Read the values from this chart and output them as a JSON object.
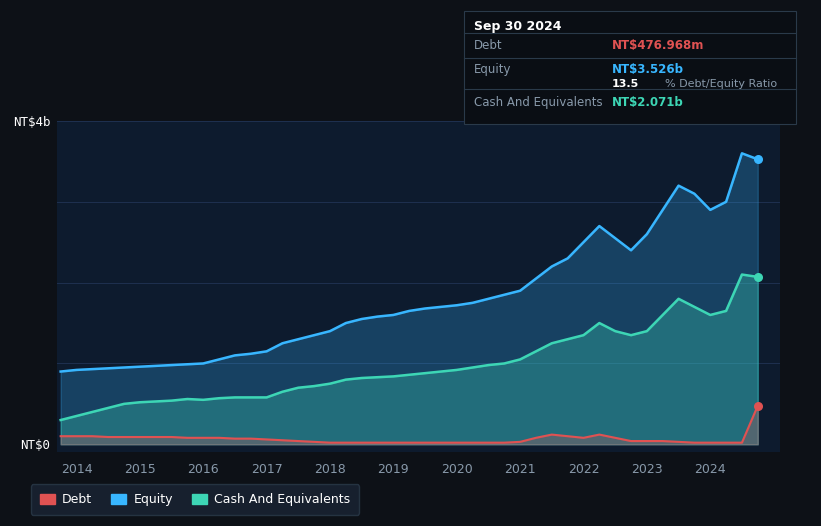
{
  "bg_color": "#0d1117",
  "plot_bg_color": "#0d1b2e",
  "grid_color": "#1e3050",
  "title_date": "Sep 30 2024",
  "debt_label": "Debt",
  "equity_label": "Equity",
  "cash_label": "Cash And Equivalents",
  "debt_value": "NT$476.968m",
  "equity_value": "NT$3.526b",
  "ratio_value": "13.5% Debt/Equity Ratio",
  "cash_value": "NT$2.071b",
  "debt_color": "#e05252",
  "equity_color": "#38b6ff",
  "cash_color": "#3dd6b5",
  "ylabel_top": "NT$4b",
  "ylabel_bottom": "NT$0",
  "y_max": 4.0,
  "y_min": -0.1,
  "equity_data": {
    "x": [
      2013.75,
      2014.0,
      2014.25,
      2014.5,
      2014.75,
      2015.0,
      2015.25,
      2015.5,
      2015.75,
      2016.0,
      2016.25,
      2016.5,
      2016.75,
      2017.0,
      2017.25,
      2017.5,
      2017.75,
      2018.0,
      2018.25,
      2018.5,
      2018.75,
      2019.0,
      2019.25,
      2019.5,
      2019.75,
      2020.0,
      2020.25,
      2020.5,
      2020.75,
      2021.0,
      2021.25,
      2021.5,
      2021.75,
      2022.0,
      2022.25,
      2022.5,
      2022.75,
      2023.0,
      2023.25,
      2023.5,
      2023.75,
      2024.0,
      2024.25,
      2024.5,
      2024.75
    ],
    "y": [
      0.9,
      0.92,
      0.93,
      0.94,
      0.95,
      0.96,
      0.97,
      0.98,
      0.99,
      1.0,
      1.05,
      1.1,
      1.12,
      1.15,
      1.25,
      1.3,
      1.35,
      1.4,
      1.5,
      1.55,
      1.58,
      1.6,
      1.65,
      1.68,
      1.7,
      1.72,
      1.75,
      1.8,
      1.85,
      1.9,
      2.05,
      2.2,
      2.3,
      2.5,
      2.7,
      2.55,
      2.4,
      2.6,
      2.9,
      3.2,
      3.1,
      2.9,
      3.0,
      3.6,
      3.526
    ]
  },
  "cash_data": {
    "x": [
      2013.75,
      2014.0,
      2014.25,
      2014.5,
      2014.75,
      2015.0,
      2015.25,
      2015.5,
      2015.75,
      2016.0,
      2016.25,
      2016.5,
      2016.75,
      2017.0,
      2017.25,
      2017.5,
      2017.75,
      2018.0,
      2018.25,
      2018.5,
      2018.75,
      2019.0,
      2019.25,
      2019.5,
      2019.75,
      2020.0,
      2020.25,
      2020.5,
      2020.75,
      2021.0,
      2021.25,
      2021.5,
      2021.75,
      2022.0,
      2022.25,
      2022.5,
      2022.75,
      2023.0,
      2023.25,
      2023.5,
      2023.75,
      2024.0,
      2024.25,
      2024.5,
      2024.75
    ],
    "y": [
      0.3,
      0.35,
      0.4,
      0.45,
      0.5,
      0.52,
      0.53,
      0.54,
      0.56,
      0.55,
      0.57,
      0.58,
      0.58,
      0.58,
      0.65,
      0.7,
      0.72,
      0.75,
      0.8,
      0.82,
      0.83,
      0.84,
      0.86,
      0.88,
      0.9,
      0.92,
      0.95,
      0.98,
      1.0,
      1.05,
      1.15,
      1.25,
      1.3,
      1.35,
      1.5,
      1.4,
      1.35,
      1.4,
      1.6,
      1.8,
      1.7,
      1.6,
      1.65,
      2.1,
      2.071
    ]
  },
  "debt_data": {
    "x": [
      2013.75,
      2014.0,
      2014.25,
      2014.5,
      2014.75,
      2015.0,
      2015.25,
      2015.5,
      2015.75,
      2016.0,
      2016.25,
      2016.5,
      2016.75,
      2017.0,
      2017.25,
      2017.5,
      2017.75,
      2018.0,
      2018.25,
      2018.5,
      2018.75,
      2019.0,
      2019.25,
      2019.5,
      2019.75,
      2020.0,
      2020.25,
      2020.5,
      2020.75,
      2021.0,
      2021.25,
      2021.5,
      2021.75,
      2022.0,
      2022.25,
      2022.5,
      2022.75,
      2023.0,
      2023.25,
      2023.5,
      2023.75,
      2024.0,
      2024.25,
      2024.5,
      2024.75
    ],
    "y": [
      0.1,
      0.1,
      0.1,
      0.09,
      0.09,
      0.09,
      0.09,
      0.09,
      0.08,
      0.08,
      0.08,
      0.07,
      0.07,
      0.06,
      0.05,
      0.04,
      0.03,
      0.02,
      0.02,
      0.02,
      0.02,
      0.02,
      0.02,
      0.02,
      0.02,
      0.02,
      0.02,
      0.02,
      0.02,
      0.03,
      0.08,
      0.12,
      0.1,
      0.08,
      0.12,
      0.08,
      0.04,
      0.04,
      0.04,
      0.03,
      0.02,
      0.02,
      0.02,
      0.02,
      0.477
    ]
  },
  "legend_items": [
    "Debt",
    "Equity",
    "Cash And Equivalents"
  ],
  "legend_colors": [
    "#e05252",
    "#38b6ff",
    "#3dd6b5"
  ],
  "separator_color": "#2a3a4a",
  "box_bg_color": "#0a0e14",
  "label_color": "#8899aa"
}
